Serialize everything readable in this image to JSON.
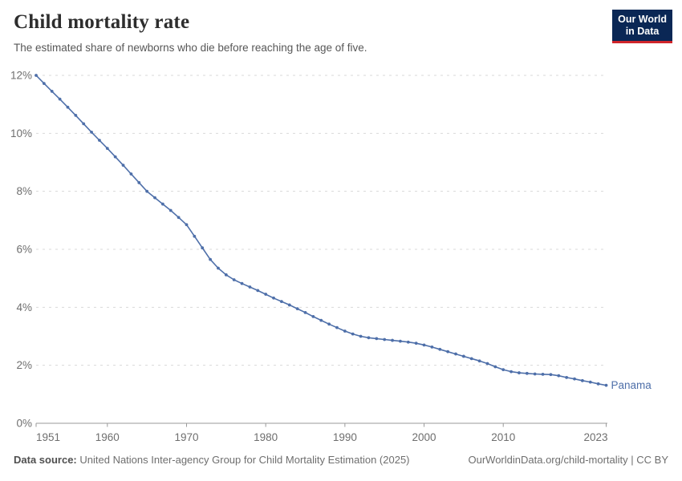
{
  "header": {
    "title": "Child mortality rate",
    "subtitle": "The estimated share of newborns who die before reaching the age of five.",
    "logo": {
      "line1": "Our World",
      "line2": "in Data",
      "bg_color": "#0A2755",
      "accent_color": "#D0252B"
    }
  },
  "chart_data": {
    "type": "line",
    "title": "Child mortality rate",
    "entity_label": "Panama",
    "unit": "%",
    "grid": "horizontal-dashed",
    "legend_position": "end-of-line-label",
    "xlim": [
      1951,
      2023
    ],
    "ylim": [
      0,
      12
    ],
    "yticks": [
      0,
      2,
      4,
      6,
      8,
      10,
      12
    ],
    "ytick_suffix": "%",
    "xticks": [
      1951,
      1960,
      1970,
      1980,
      1990,
      2000,
      2010,
      2023
    ],
    "x": [
      1951,
      1952,
      1953,
      1954,
      1955,
      1956,
      1957,
      1958,
      1959,
      1960,
      1961,
      1962,
      1963,
      1964,
      1965,
      1966,
      1967,
      1968,
      1969,
      1970,
      1971,
      1972,
      1973,
      1974,
      1975,
      1976,
      1977,
      1978,
      1979,
      1980,
      1981,
      1982,
      1983,
      1984,
      1985,
      1986,
      1987,
      1988,
      1989,
      1990,
      1991,
      1992,
      1993,
      1994,
      1995,
      1996,
      1997,
      1998,
      1999,
      2000,
      2001,
      2002,
      2003,
      2004,
      2005,
      2006,
      2007,
      2008,
      2009,
      2010,
      2011,
      2012,
      2013,
      2014,
      2015,
      2016,
      2017,
      2018,
      2019,
      2020,
      2021,
      2022,
      2023
    ],
    "series": [
      {
        "name": "Panama",
        "color": "#4e6fa9",
        "values": [
          12.0,
          11.72,
          11.45,
          11.18,
          10.9,
          10.62,
          10.33,
          10.04,
          9.76,
          9.48,
          9.19,
          8.9,
          8.6,
          8.3,
          8.0,
          7.78,
          7.56,
          7.34,
          7.1,
          6.85,
          6.45,
          6.05,
          5.65,
          5.35,
          5.12,
          4.95,
          4.82,
          4.7,
          4.58,
          4.45,
          4.32,
          4.2,
          4.08,
          3.95,
          3.82,
          3.68,
          3.55,
          3.42,
          3.3,
          3.18,
          3.08,
          3.0,
          2.95,
          2.92,
          2.89,
          2.86,
          2.83,
          2.8,
          2.76,
          2.7,
          2.63,
          2.55,
          2.47,
          2.39,
          2.31,
          2.23,
          2.15,
          2.06,
          1.95,
          1.85,
          1.78,
          1.74,
          1.72,
          1.7,
          1.69,
          1.68,
          1.64,
          1.58,
          1.53,
          1.47,
          1.42,
          1.36,
          1.31
        ]
      }
    ],
    "colors": {
      "gridline": "#d9d9d9",
      "axis": "#9a9a9a",
      "tick_label": "#6e6e6e"
    }
  },
  "footer": {
    "source_label": "Data source:",
    "source_text": "United Nations Inter-agency Group for Child Mortality Estimation (2025)",
    "link_text": "OurWorldinData.org/child-mortality | CC BY"
  }
}
